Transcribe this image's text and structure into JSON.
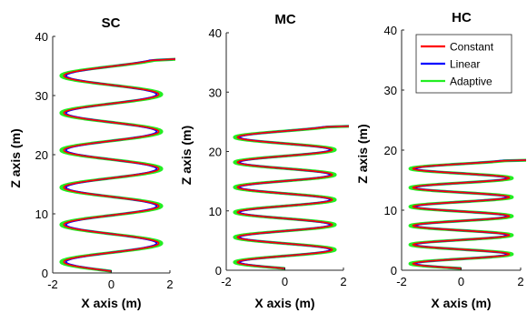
{
  "chart_data": [
    {
      "type": "line",
      "title": "SC",
      "xlabel": "X axis (m)",
      "ylabel": "Z axis (m)",
      "xlim": [
        -2,
        2
      ],
      "ylim": [
        0,
        40
      ],
      "xticks": [
        -2,
        0,
        2
      ],
      "yticks": [
        0,
        10,
        20,
        30,
        40
      ],
      "grid": false,
      "trajectory": {
        "z_start": 0.3,
        "z_end": 36.5,
        "x_start": 0.0,
        "x_end": 1.85,
        "loops": 5.75,
        "x_amplitude": 1.7
      },
      "series": [
        {
          "name": "Constant",
          "color": "#ff0000",
          "x_amplitude": 1.62
        },
        {
          "name": "Linear",
          "color": "#0000ff",
          "x_amplitude": 1.55
        },
        {
          "name": "Adaptive",
          "color": "#22ee22",
          "x_amplitude": 1.72
        }
      ]
    },
    {
      "type": "line",
      "title": "MC",
      "xlabel": "X axis (m)",
      "ylabel": "Z axis (m)",
      "xlim": [
        -2,
        2
      ],
      "ylim": [
        0,
        40
      ],
      "xticks": [
        -2,
        0,
        2
      ],
      "yticks": [
        0,
        10,
        20,
        30,
        40
      ],
      "grid": false,
      "trajectory": {
        "z_start": 0.3,
        "z_end": 24.5,
        "x_start": 0.0,
        "x_end": 1.95,
        "loops": 5.75,
        "x_amplitude": 1.7
      },
      "series": [
        {
          "name": "Constant",
          "color": "#ff0000",
          "x_amplitude": 1.62
        },
        {
          "name": "Linear",
          "color": "#0000ff",
          "x_amplitude": 1.55
        },
        {
          "name": "Adaptive",
          "color": "#22ee22",
          "x_amplitude": 1.72
        }
      ]
    },
    {
      "type": "line",
      "title": "HC",
      "xlabel": "X axis (m)",
      "ylabel": "Z axis (m)",
      "xlim": [
        -2,
        2
      ],
      "ylim": [
        0,
        40
      ],
      "xticks": [
        -2,
        0,
        2
      ],
      "yticks": [
        0,
        10,
        20,
        30,
        40
      ],
      "grid": false,
      "legend_position": "top-right",
      "trajectory": {
        "z_start": 0.3,
        "z_end": 18.5,
        "x_start": 0.0,
        "x_end": 1.85,
        "loops": 5.75,
        "x_amplitude": 1.7
      },
      "series": [
        {
          "name": "Constant",
          "color": "#ff0000",
          "x_amplitude": 1.62
        },
        {
          "name": "Linear",
          "color": "#0000ff",
          "x_amplitude": 1.55
        },
        {
          "name": "Adaptive",
          "color": "#22ee22",
          "x_amplitude": 1.72
        }
      ]
    }
  ]
}
